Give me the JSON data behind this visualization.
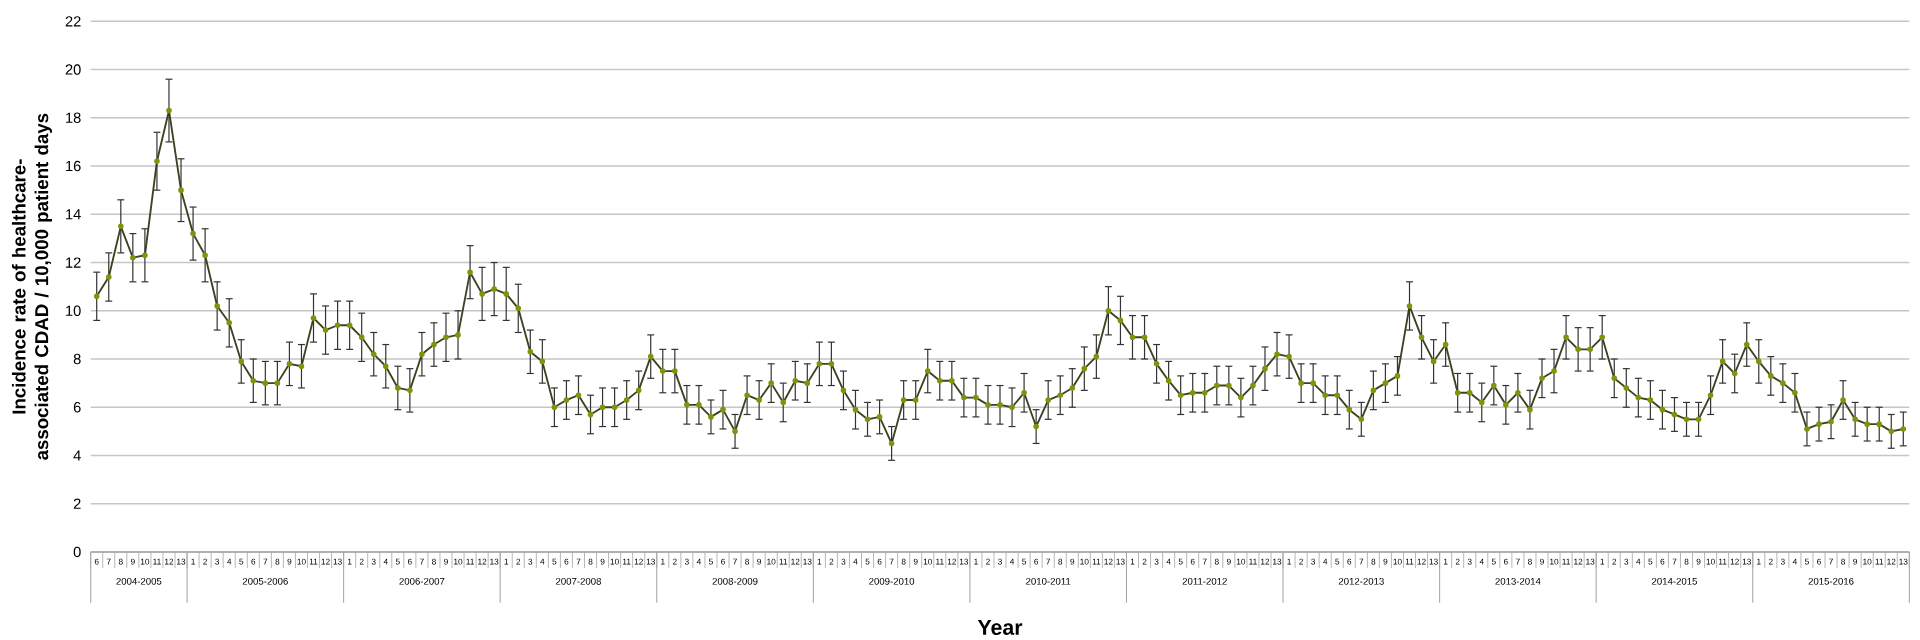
{
  "chart_data": {
    "type": "line",
    "ylabel": "Incidence rate of healthcare-associated  CDAD / 10,000 patient days",
    "xlabel": "Year",
    "categories": [
      "6",
      "7",
      "8",
      "9",
      "10",
      "11",
      "12",
      "13",
      "1",
      "2",
      "3",
      "4",
      "5",
      "6",
      "7",
      "8",
      "9",
      "10",
      "11",
      "12",
      "13",
      "1",
      "2",
      "3",
      "4",
      "5",
      "6",
      "7",
      "8",
      "9",
      "10",
      "11",
      "12",
      "13",
      "1",
      "2",
      "3",
      "4",
      "5",
      "6",
      "7",
      "8",
      "9",
      "10",
      "11",
      "12",
      "13",
      "1",
      "2",
      "3",
      "4",
      "5",
      "6",
      "7",
      "8",
      "9",
      "10",
      "11",
      "12",
      "13",
      "1",
      "2",
      "3",
      "4",
      "5",
      "6",
      "7",
      "8",
      "9",
      "10",
      "11",
      "12",
      "13",
      "1",
      "2",
      "3",
      "4",
      "5",
      "6",
      "7",
      "8",
      "9",
      "10",
      "11",
      "12",
      "13",
      "1",
      "2",
      "3",
      "4",
      "5",
      "6",
      "7",
      "8",
      "9",
      "10",
      "11",
      "12",
      "13",
      "1",
      "2",
      "3",
      "4",
      "5",
      "6",
      "7",
      "8",
      "9",
      "10",
      "11",
      "12",
      "13",
      "1",
      "2",
      "3",
      "4",
      "5",
      "6",
      "7",
      "8",
      "9",
      "10",
      "11",
      "12",
      "13",
      "1",
      "2",
      "3",
      "4",
      "5",
      "6",
      "7",
      "8",
      "9",
      "10",
      "11",
      "12",
      "13",
      "1",
      "2",
      "3",
      "4",
      "5",
      "6",
      "7",
      "8",
      "9",
      "10",
      "11",
      "12",
      "13"
    ],
    "annotations": [
      "2004-2005",
      "2005-2006",
      "2006-2007",
      "2007-2008",
      "2008-2009",
      "2009-2010",
      "2010-2011",
      "2011-2012",
      "2012-2013",
      "2013-2014",
      "2014-2015",
      "2015-2016"
    ],
    "series": [
      {
        "color": "#3d4220",
        "values": [
          10.6,
          11.4,
          13.5,
          12.2,
          12.3,
          16.2,
          18.3,
          15.0,
          13.2,
          12.3,
          10.2,
          9.5,
          7.9,
          7.1,
          7.0,
          7.0,
          7.8,
          7.7,
          9.7,
          9.2,
          9.4,
          9.4,
          8.9,
          8.2,
          7.7,
          6.8,
          6.7,
          8.2,
          8.6,
          8.9,
          9.0,
          11.6,
          10.7,
          10.9,
          10.7,
          10.1,
          8.3,
          7.9,
          6.0,
          6.3,
          6.5,
          5.7,
          6.0,
          6.0,
          6.3,
          6.7,
          8.1,
          7.5,
          7.5,
          6.1,
          6.1,
          5.6,
          5.9,
          5.0,
          6.5,
          6.3,
          7.0,
          6.2,
          7.1,
          7.0,
          7.8,
          7.8,
          6.7,
          5.9,
          5.5,
          5.6,
          4.5,
          6.3,
          6.3,
          7.5,
          7.1,
          7.1,
          6.4,
          6.4,
          6.1,
          6.1,
          6.0,
          6.6,
          5.2,
          6.3,
          6.5,
          6.8,
          7.6,
          8.1,
          10.0,
          9.6,
          8.9,
          8.9,
          7.8,
          7.1,
          6.5,
          6.6,
          6.6,
          6.9,
          6.9,
          6.4,
          6.9,
          7.6,
          8.2,
          8.1,
          7.0,
          7.0,
          6.5,
          6.5,
          5.9,
          5.5,
          6.7,
          7.0,
          7.3,
          10.2,
          8.9,
          7.9,
          8.6,
          6.6,
          6.6,
          6.2,
          6.9,
          6.1,
          6.6,
          5.9,
          7.2,
          7.5,
          8.9,
          8.4,
          8.4,
          8.9,
          7.2,
          6.8,
          6.4,
          6.3,
          5.9,
          5.7,
          5.5,
          5.5,
          6.5,
          7.9,
          7.4,
          8.6,
          7.9,
          7.3,
          7.0,
          6.6,
          5.1,
          5.3,
          5.4,
          6.3,
          5.5,
          5.3,
          5.3,
          5.0,
          5.1
        ],
        "errors": [
          1.0,
          1.0,
          1.1,
          1.0,
          1.1,
          1.2,
          1.3,
          1.3,
          1.1,
          1.1,
          1.0,
          1.0,
          0.9,
          0.9,
          0.9,
          0.9,
          0.9,
          0.9,
          1.0,
          1.0,
          1.0,
          1.0,
          1.0,
          0.9,
          0.9,
          0.9,
          0.9,
          0.9,
          0.9,
          1.0,
          1.0,
          1.1,
          1.1,
          1.1,
          1.1,
          1.0,
          0.9,
          0.9,
          0.8,
          0.8,
          0.8,
          0.8,
          0.8,
          0.8,
          0.8,
          0.8,
          0.9,
          0.9,
          0.9,
          0.8,
          0.8,
          0.7,
          0.8,
          0.7,
          0.8,
          0.8,
          0.8,
          0.8,
          0.8,
          0.8,
          0.9,
          0.9,
          0.8,
          0.8,
          0.7,
          0.7,
          0.7,
          0.8,
          0.8,
          0.9,
          0.8,
          0.8,
          0.8,
          0.8,
          0.8,
          0.8,
          0.8,
          0.8,
          0.7,
          0.8,
          0.8,
          0.8,
          0.9,
          0.9,
          1.0,
          1.0,
          0.9,
          0.9,
          0.8,
          0.8,
          0.8,
          0.8,
          0.8,
          0.8,
          0.8,
          0.8,
          0.8,
          0.9,
          0.9,
          0.9,
          0.8,
          0.8,
          0.8,
          0.8,
          0.8,
          0.7,
          0.8,
          0.8,
          0.8,
          1.0,
          0.9,
          0.9,
          0.9,
          0.8,
          0.8,
          0.8,
          0.8,
          0.8,
          0.8,
          0.8,
          0.8,
          0.9,
          0.9,
          0.9,
          0.9,
          0.9,
          0.8,
          0.8,
          0.8,
          0.8,
          0.8,
          0.7,
          0.7,
          0.7,
          0.8,
          0.9,
          0.8,
          0.9,
          0.9,
          0.8,
          0.8,
          0.8,
          0.7,
          0.7,
          0.7,
          0.8,
          0.7,
          0.7,
          0.7,
          0.7,
          0.7
        ]
      }
    ],
    "ylim": [
      0,
      22
    ],
    "yticks": [
      0,
      2,
      4,
      6,
      8,
      10,
      12,
      14,
      16,
      18,
      20,
      22
    ],
    "grid": "y",
    "marker": "circle",
    "line_style": "solid"
  }
}
